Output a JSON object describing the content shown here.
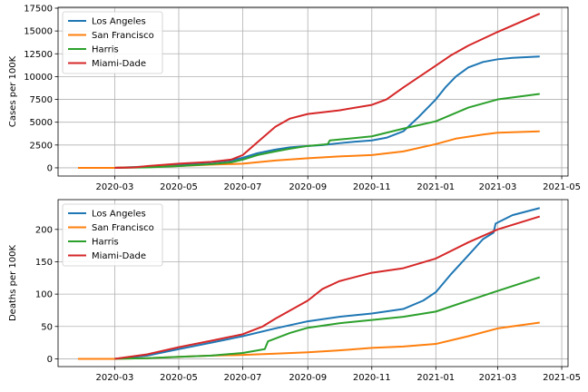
{
  "chart_data": [
    {
      "type": "line",
      "ylabel": "Cases per 100K",
      "xlabel": "",
      "title": "",
      "grid": true,
      "legend_position": "top-left",
      "xlim": [
        "2020-01-07",
        "2021-05-07"
      ],
      "ylim": [
        -900,
        17600
      ],
      "x_ticks": [
        "2020-03",
        "2020-05",
        "2020-07",
        "2020-09",
        "2020-11",
        "2021-01",
        "2021-03",
        "2021-05"
      ],
      "y_ticks": [
        0,
        2500,
        5000,
        7500,
        10000,
        12500,
        15000,
        17500
      ],
      "series": [
        {
          "name": "Los Angeles",
          "color": "#1f77b4",
          "points": [
            [
              "2020-01-26",
              0
            ],
            [
              "2020-03-01",
              0
            ],
            [
              "2020-04-01",
              150
            ],
            [
              "2020-05-01",
              350
            ],
            [
              "2020-06-01",
              600
            ],
            [
              "2020-06-20",
              800
            ],
            [
              "2020-07-01",
              1100
            ],
            [
              "2020-07-15",
              1600
            ],
            [
              "2020-08-01",
              2000
            ],
            [
              "2020-08-15",
              2250
            ],
            [
              "2020-09-01",
              2400
            ],
            [
              "2020-09-15",
              2500
            ],
            [
              "2020-10-01",
              2700
            ],
            [
              "2020-10-15",
              2850
            ],
            [
              "2020-11-01",
              3000
            ],
            [
              "2020-11-15",
              3300
            ],
            [
              "2020-12-01",
              4000
            ],
            [
              "2020-12-15",
              5500
            ],
            [
              "2021-01-01",
              7500
            ],
            [
              "2021-01-10",
              8800
            ],
            [
              "2021-01-20",
              10000
            ],
            [
              "2021-02-01",
              11000
            ],
            [
              "2021-02-15",
              11600
            ],
            [
              "2021-03-01",
              11900
            ],
            [
              "2021-03-15",
              12050
            ],
            [
              "2021-04-10",
              12200
            ]
          ]
        },
        {
          "name": "San Francisco",
          "color": "#ff7f0e",
          "points": [
            [
              "2020-01-26",
              0
            ],
            [
              "2020-03-01",
              0
            ],
            [
              "2020-04-01",
              100
            ],
            [
              "2020-05-01",
              200
            ],
            [
              "2020-06-01",
              350
            ],
            [
              "2020-07-01",
              450
            ],
            [
              "2020-08-01",
              800
            ],
            [
              "2020-09-01",
              1050
            ],
            [
              "2020-10-01",
              1250
            ],
            [
              "2020-11-01",
              1400
            ],
            [
              "2020-12-01",
              1800
            ],
            [
              "2021-01-01",
              2600
            ],
            [
              "2021-01-20",
              3200
            ],
            [
              "2021-02-15",
              3650
            ],
            [
              "2021-03-01",
              3850
            ],
            [
              "2021-04-10",
              4000
            ]
          ]
        },
        {
          "name": "Harris",
          "color": "#2ca02c",
          "points": [
            [
              "2020-03-01",
              0
            ],
            [
              "2020-04-01",
              50
            ],
            [
              "2020-05-01",
              200
            ],
            [
              "2020-06-01",
              400
            ],
            [
              "2020-06-20",
              600
            ],
            [
              "2020-07-01",
              900
            ],
            [
              "2020-07-15",
              1400
            ],
            [
              "2020-08-01",
              1800
            ],
            [
              "2020-08-15",
              2100
            ],
            [
              "2020-09-01",
              2400
            ],
            [
              "2020-09-20",
              2600
            ],
            [
              "2020-09-22",
              3000
            ],
            [
              "2020-10-01",
              3100
            ],
            [
              "2020-11-01",
              3450
            ],
            [
              "2020-12-01",
              4300
            ],
            [
              "2021-01-01",
              5100
            ],
            [
              "2021-02-01",
              6600
            ],
            [
              "2021-03-01",
              7500
            ],
            [
              "2021-04-10",
              8100
            ]
          ]
        },
        {
          "name": "Miami-Dade",
          "color": "#d62728",
          "points": [
            [
              "2020-03-01",
              0
            ],
            [
              "2020-03-20",
              50
            ],
            [
              "2020-04-01",
              200
            ],
            [
              "2020-05-01",
              450
            ],
            [
              "2020-06-01",
              650
            ],
            [
              "2020-06-20",
              900
            ],
            [
              "2020-07-01",
              1400
            ],
            [
              "2020-07-15",
              2800
            ],
            [
              "2020-08-01",
              4500
            ],
            [
              "2020-08-15",
              5400
            ],
            [
              "2020-09-01",
              5900
            ],
            [
              "2020-10-01",
              6300
            ],
            [
              "2020-11-01",
              6900
            ],
            [
              "2020-11-15",
              7500
            ],
            [
              "2020-12-01",
              8800
            ],
            [
              "2021-01-01",
              11200
            ],
            [
              "2021-01-15",
              12300
            ],
            [
              "2021-02-01",
              13400
            ],
            [
              "2021-03-01",
              14900
            ],
            [
              "2021-04-10",
              16900
            ]
          ]
        }
      ]
    },
    {
      "type": "line",
      "ylabel": "Deaths per 100K",
      "xlabel": "",
      "title": "",
      "grid": true,
      "legend_position": "top-left",
      "xlim": [
        "2020-01-07",
        "2021-05-07"
      ],
      "ylim": [
        -12,
        246
      ],
      "x_ticks": [
        "2020-03",
        "2020-05",
        "2020-07",
        "2020-09",
        "2020-11",
        "2021-01",
        "2021-03",
        "2021-05"
      ],
      "y_ticks": [
        0,
        50,
        100,
        150,
        200
      ],
      "series": [
        {
          "name": "Los Angeles",
          "color": "#1f77b4",
          "points": [
            [
              "2020-01-26",
              0
            ],
            [
              "2020-03-01",
              0
            ],
            [
              "2020-04-01",
              5
            ],
            [
              "2020-05-01",
              15
            ],
            [
              "2020-06-01",
              25
            ],
            [
              "2020-07-01",
              35
            ],
            [
              "2020-08-01",
              47
            ],
            [
              "2020-09-01",
              58
            ],
            [
              "2020-10-01",
              65
            ],
            [
              "2020-11-01",
              70
            ],
            [
              "2020-12-01",
              77
            ],
            [
              "2020-12-20",
              90
            ],
            [
              "2021-01-01",
              103
            ],
            [
              "2021-01-15",
              130
            ],
            [
              "2021-02-01",
              160
            ],
            [
              "2021-02-15",
              185
            ],
            [
              "2021-02-25",
              195
            ],
            [
              "2021-02-27",
              209
            ],
            [
              "2021-03-15",
              222
            ],
            [
              "2021-04-10",
              233
            ]
          ]
        },
        {
          "name": "San Francisco",
          "color": "#ff7f0e",
          "points": [
            [
              "2020-01-26",
              0
            ],
            [
              "2020-03-01",
              0
            ],
            [
              "2020-04-01",
              1
            ],
            [
              "2020-05-01",
              3
            ],
            [
              "2020-06-01",
              5
            ],
            [
              "2020-07-01",
              6
            ],
            [
              "2020-08-01",
              8
            ],
            [
              "2020-09-01",
              10
            ],
            [
              "2020-10-01",
              13
            ],
            [
              "2020-11-01",
              17
            ],
            [
              "2020-12-01",
              19
            ],
            [
              "2021-01-01",
              23
            ],
            [
              "2021-02-01",
              35
            ],
            [
              "2021-03-01",
              47
            ],
            [
              "2021-04-10",
              56
            ]
          ]
        },
        {
          "name": "Harris",
          "color": "#2ca02c",
          "points": [
            [
              "2020-03-01",
              0
            ],
            [
              "2020-04-01",
              1
            ],
            [
              "2020-05-01",
              3
            ],
            [
              "2020-06-01",
              5
            ],
            [
              "2020-07-01",
              9
            ],
            [
              "2020-07-22",
              15
            ],
            [
              "2020-07-25",
              27
            ],
            [
              "2020-08-15",
              40
            ],
            [
              "2020-09-01",
              48
            ],
            [
              "2020-10-01",
              55
            ],
            [
              "2020-11-01",
              60
            ],
            [
              "2020-12-01",
              65
            ],
            [
              "2021-01-01",
              73
            ],
            [
              "2021-02-01",
              90
            ],
            [
              "2021-03-01",
              105
            ],
            [
              "2021-04-10",
              126
            ]
          ]
        },
        {
          "name": "Miami-Dade",
          "color": "#d62728",
          "points": [
            [
              "2020-03-01",
              0
            ],
            [
              "2020-04-01",
              7
            ],
            [
              "2020-05-01",
              18
            ],
            [
              "2020-06-01",
              28
            ],
            [
              "2020-07-01",
              38
            ],
            [
              "2020-07-20",
              50
            ],
            [
              "2020-08-01",
              62
            ],
            [
              "2020-09-01",
              90
            ],
            [
              "2020-09-15",
              108
            ],
            [
              "2020-10-01",
              120
            ],
            [
              "2020-11-01",
              133
            ],
            [
              "2020-12-01",
              140
            ],
            [
              "2021-01-01",
              155
            ],
            [
              "2021-02-01",
              180
            ],
            [
              "2021-03-01",
              200
            ],
            [
              "2021-04-10",
              220
            ]
          ]
        }
      ]
    }
  ]
}
